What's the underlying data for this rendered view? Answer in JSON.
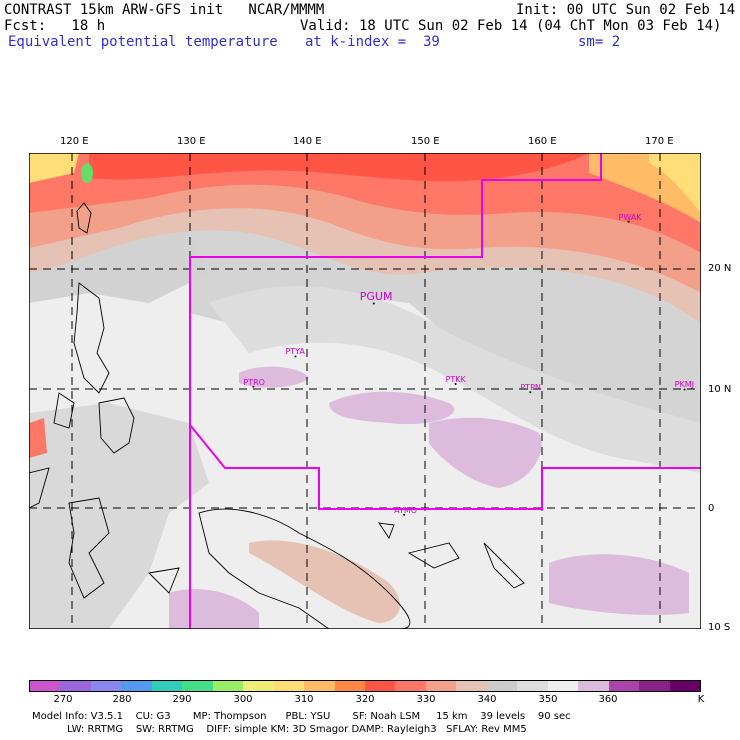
{
  "header": {
    "line1_left": "CONTRAST 15km ARW-GFS init   NCAR/MMMM",
    "line1_right": "Init: 00 UTC Sun 02 Feb 14",
    "line2_left": "Fcst:   18 h",
    "line2_right": "Valid: 18 UTC Sun 02 Feb 14 (04 ChT Mon 03 Feb 14)",
    "line3_left": "Equivalent potential temperature",
    "line3_mid": "at k-index =  39",
    "line3_right": "sm= 2"
  },
  "map": {
    "lon_ticks": [
      "120 E",
      "130 E",
      "140 E",
      "150 E",
      "160 E",
      "170 E"
    ],
    "lat_ticks": [
      "20 N",
      "10 N",
      "0",
      "10 S"
    ],
    "stations": [
      {
        "label": "PGUM",
        "lon": 144.8,
        "lat": 13.5,
        "big": true
      },
      {
        "label": "PTYA",
        "lon": 138.1,
        "lat": 9.5,
        "big": false
      },
      {
        "label": "PTRO",
        "lon": 134.5,
        "lat": 7.3,
        "big": false
      },
      {
        "label": "PTKK",
        "lon": 151.8,
        "lat": 7.5,
        "big": false
      },
      {
        "label": "PTPN",
        "lon": 158.2,
        "lat": 6.9,
        "big": false
      },
      {
        "label": "PKMJ",
        "lon": 171.4,
        "lat": 7.1,
        "big": false
      },
      {
        "label": "PWAK",
        "lon": 166.6,
        "lat": 19.3,
        "big": false
      },
      {
        "label": "AYMO",
        "lon": 147.4,
        "lat": -2.0,
        "big": false
      }
    ]
  },
  "colorbar": {
    "colors": [
      "#cc55cc",
      "#9966dd",
      "#8888ee",
      "#5599ee",
      "#33ccbb",
      "#44dd88",
      "#99ee66",
      "#eeee77",
      "#ffdd77",
      "#ffbb66",
      "#ff8844",
      "#ff5544",
      "#ff7766",
      "#f2a08a",
      "#e6c2b4",
      "#cccccc",
      "#dddddd",
      "#eeeeee",
      "#ddbbdd",
      "#aa44aa",
      "#882288",
      "#660066"
    ],
    "labels": [
      "270",
      "280",
      "290",
      "300",
      "310",
      "320",
      "330",
      "340",
      "350",
      "360"
    ],
    "unit": "K"
  },
  "model_info": {
    "line1": "Model Info: V3.5.1    CU: G3       MP: Thompson      PBL: YSU       SF: Noah LSM     15 km    39 levels    90 sec",
    "line2": "           LW: RRTMG    SW: RRTMG    DIFF: simple KM: 3D Smagor DAMP: Rayleigh3   SFLAY: Rev MM5"
  }
}
